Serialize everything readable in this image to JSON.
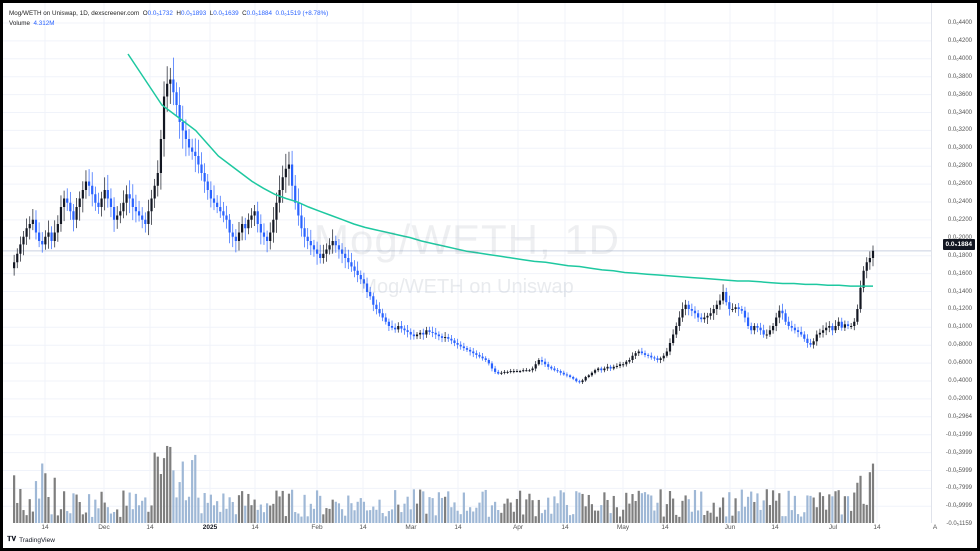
{
  "header": {
    "symbol_line": "Mog/WETH on Uniswap, 1D, dexscreener.com",
    "open_label": "O",
    "open": "0.0₅1732",
    "high_label": "H",
    "high": "0.0₅1893",
    "low_label": "L",
    "low": "0.0₅1639",
    "close_label": "C",
    "close": "0.0₅1884",
    "change": "0.0₆1519 (+8.78%)",
    "volume_label": "Volume",
    "volume": "4.312M"
  },
  "watermark": {
    "main": "Mog/WETH, 1D",
    "sub": "Mog/WETH on Uniswap"
  },
  "price_axis": {
    "ticks": [
      "0.0₆4400",
      "0.0₆4200",
      "0.0₆4000",
      "0.0₆3800",
      "0.0₆3600",
      "0.0₆3400",
      "0.0₆3200",
      "0.0₆3000",
      "0.0₆2800",
      "0.0₆2600",
      "0.0₆2400",
      "0.0₆2200",
      "0.0₆2000",
      "0.0₆1800",
      "0.0₆1600",
      "0.0₆1400",
      "0.0₆1200",
      "0.0₆1000",
      "0.0₇8000",
      "0.0₇6000",
      "0.0₇4000",
      "0.0₇2000",
      "0.0₅2964",
      "-0.0₆1999",
      "-0.0₆3999",
      "-0.0₆5999",
      "-0.0₆7999",
      "-0.0₆9999",
      "-0.0₅1159"
    ],
    "current_price": "0.0₅1884"
  },
  "time_axis": [
    {
      "label": "14",
      "bold": false
    },
    {
      "label": "Dec",
      "bold": false
    },
    {
      "label": "14",
      "bold": false
    },
    {
      "label": "2025",
      "bold": true
    },
    {
      "label": "14",
      "bold": false
    },
    {
      "label": "Feb",
      "bold": false
    },
    {
      "label": "14",
      "bold": false
    },
    {
      "label": "Mar",
      "bold": false
    },
    {
      "label": "14",
      "bold": false
    },
    {
      "label": "Apr",
      "bold": false
    },
    {
      "label": "14",
      "bold": false
    },
    {
      "label": "May",
      "bold": false
    },
    {
      "label": "14",
      "bold": false
    },
    {
      "label": "Jun",
      "bold": false
    },
    {
      "label": "14",
      "bold": false
    },
    {
      "label": "Jul",
      "bold": false
    },
    {
      "label": "14",
      "bold": false
    },
    {
      "label": "A",
      "bold": false
    }
  ],
  "footer": {
    "brand": "TradingView"
  },
  "colors": {
    "up": "#131722",
    "down": "#2962ff",
    "ma": "#1ec8a0",
    "vol_up": "#7e7e7e",
    "vol_down": "#9fb8d6",
    "grid": "#f0f3fa"
  },
  "chart_data": {
    "type": "candlestick",
    "timeframe": "1D",
    "y_unit": "0.0₆ units",
    "ma_type": "moving average",
    "price_path": [
      0.168,
      0.175,
      0.185,
      0.196,
      0.205,
      0.215,
      0.22,
      0.225,
      0.21,
      0.2,
      0.196,
      0.205,
      0.21,
      0.2,
      0.21,
      0.22,
      0.24,
      0.25,
      0.245,
      0.235,
      0.225,
      0.24,
      0.25,
      0.26,
      0.27,
      0.265,
      0.255,
      0.245,
      0.24,
      0.25,
      0.26,
      0.25,
      0.24,
      0.225,
      0.23,
      0.235,
      0.245,
      0.255,
      0.25,
      0.24,
      0.235,
      0.23,
      0.225,
      0.22,
      0.235,
      0.25,
      0.265,
      0.28,
      0.32,
      0.37,
      0.385,
      0.39,
      0.375,
      0.36,
      0.34,
      0.33,
      0.32,
      0.31,
      0.305,
      0.3,
      0.29,
      0.28,
      0.27,
      0.26,
      0.25,
      0.245,
      0.24,
      0.235,
      0.23,
      0.225,
      0.21,
      0.205,
      0.2,
      0.21,
      0.22,
      0.215,
      0.225,
      0.23,
      0.235,
      0.22,
      0.21,
      0.205,
      0.2,
      0.21,
      0.225,
      0.245,
      0.26,
      0.275,
      0.285,
      0.29,
      0.265,
      0.245,
      0.23,
      0.215,
      0.205,
      0.2,
      0.195,
      0.19,
      0.185,
      0.18,
      0.185,
      0.19,
      0.195,
      0.2,
      0.195,
      0.19,
      0.185,
      0.18,
      0.175,
      0.17,
      0.165,
      0.16,
      0.155,
      0.15,
      0.14,
      0.135,
      0.125,
      0.12,
      0.115,
      0.11,
      0.105,
      0.1,
      0.098,
      0.096,
      0.1,
      0.097,
      0.095,
      0.093,
      0.09,
      0.088,
      0.09,
      0.092,
      0.09,
      0.095,
      0.093,
      0.092,
      0.09,
      0.088,
      0.086,
      0.087,
      0.085,
      0.083,
      0.08,
      0.078,
      0.076,
      0.074,
      0.072,
      0.07,
      0.068,
      0.066,
      0.064,
      0.062,
      0.06,
      0.056,
      0.05,
      0.046,
      0.044,
      0.045,
      0.046,
      0.046,
      0.047,
      0.047,
      0.047,
      0.047,
      0.048,
      0.048,
      0.048,
      0.05,
      0.055,
      0.06,
      0.058,
      0.055,
      0.052,
      0.05,
      0.048,
      0.047,
      0.045,
      0.043,
      0.042,
      0.04,
      0.038,
      0.035,
      0.034,
      0.036,
      0.04,
      0.042,
      0.045,
      0.048,
      0.05,
      0.048,
      0.05,
      0.052,
      0.05,
      0.052,
      0.053,
      0.055,
      0.055,
      0.058,
      0.06,
      0.065,
      0.068,
      0.07,
      0.068,
      0.066,
      0.065,
      0.063,
      0.062,
      0.06,
      0.062,
      0.065,
      0.07,
      0.08,
      0.09,
      0.1,
      0.11,
      0.12,
      0.125,
      0.12,
      0.118,
      0.115,
      0.11,
      0.108,
      0.11,
      0.112,
      0.115,
      0.12,
      0.125,
      0.13,
      0.14,
      0.128,
      0.12,
      0.12,
      0.122,
      0.12,
      0.118,
      0.11,
      0.1,
      0.095,
      0.1,
      0.098,
      0.095,
      0.09,
      0.09,
      0.095,
      0.1,
      0.11,
      0.118,
      0.115,
      0.105,
      0.1,
      0.098,
      0.095,
      0.093,
      0.09,
      0.085,
      0.08,
      0.078,
      0.082,
      0.09,
      0.092,
      0.095,
      0.098,
      0.1,
      0.095,
      0.1,
      0.105,
      0.098,
      0.102,
      0.1,
      0.1,
      0.105,
      0.12,
      0.145,
      0.165,
      0.175,
      0.18,
      0.1884
    ],
    "ma_path": [
      0.42,
      0.4,
      0.38,
      0.36,
      0.35,
      0.34,
      0.33,
      0.315,
      0.3,
      0.29,
      0.28,
      0.27,
      0.262,
      0.255,
      0.25,
      0.246,
      0.24,
      0.235,
      0.23,
      0.225,
      0.22,
      0.216,
      0.213,
      0.21,
      0.207,
      0.204,
      0.2,
      0.197,
      0.194,
      0.191,
      0.188,
      0.186,
      0.184,
      0.182,
      0.18,
      0.178,
      0.176,
      0.175,
      0.173,
      0.171,
      0.17,
      0.168,
      0.166,
      0.165,
      0.163,
      0.162,
      0.161,
      0.16,
      0.159,
      0.158,
      0.157,
      0.156,
      0.155,
      0.154,
      0.153,
      0.153,
      0.152,
      0.151,
      0.15,
      0.15,
      0.149,
      0.149,
      0.148,
      0.148,
      0.147,
      0.147,
      0.147
    ],
    "volume_bars": 300
  }
}
